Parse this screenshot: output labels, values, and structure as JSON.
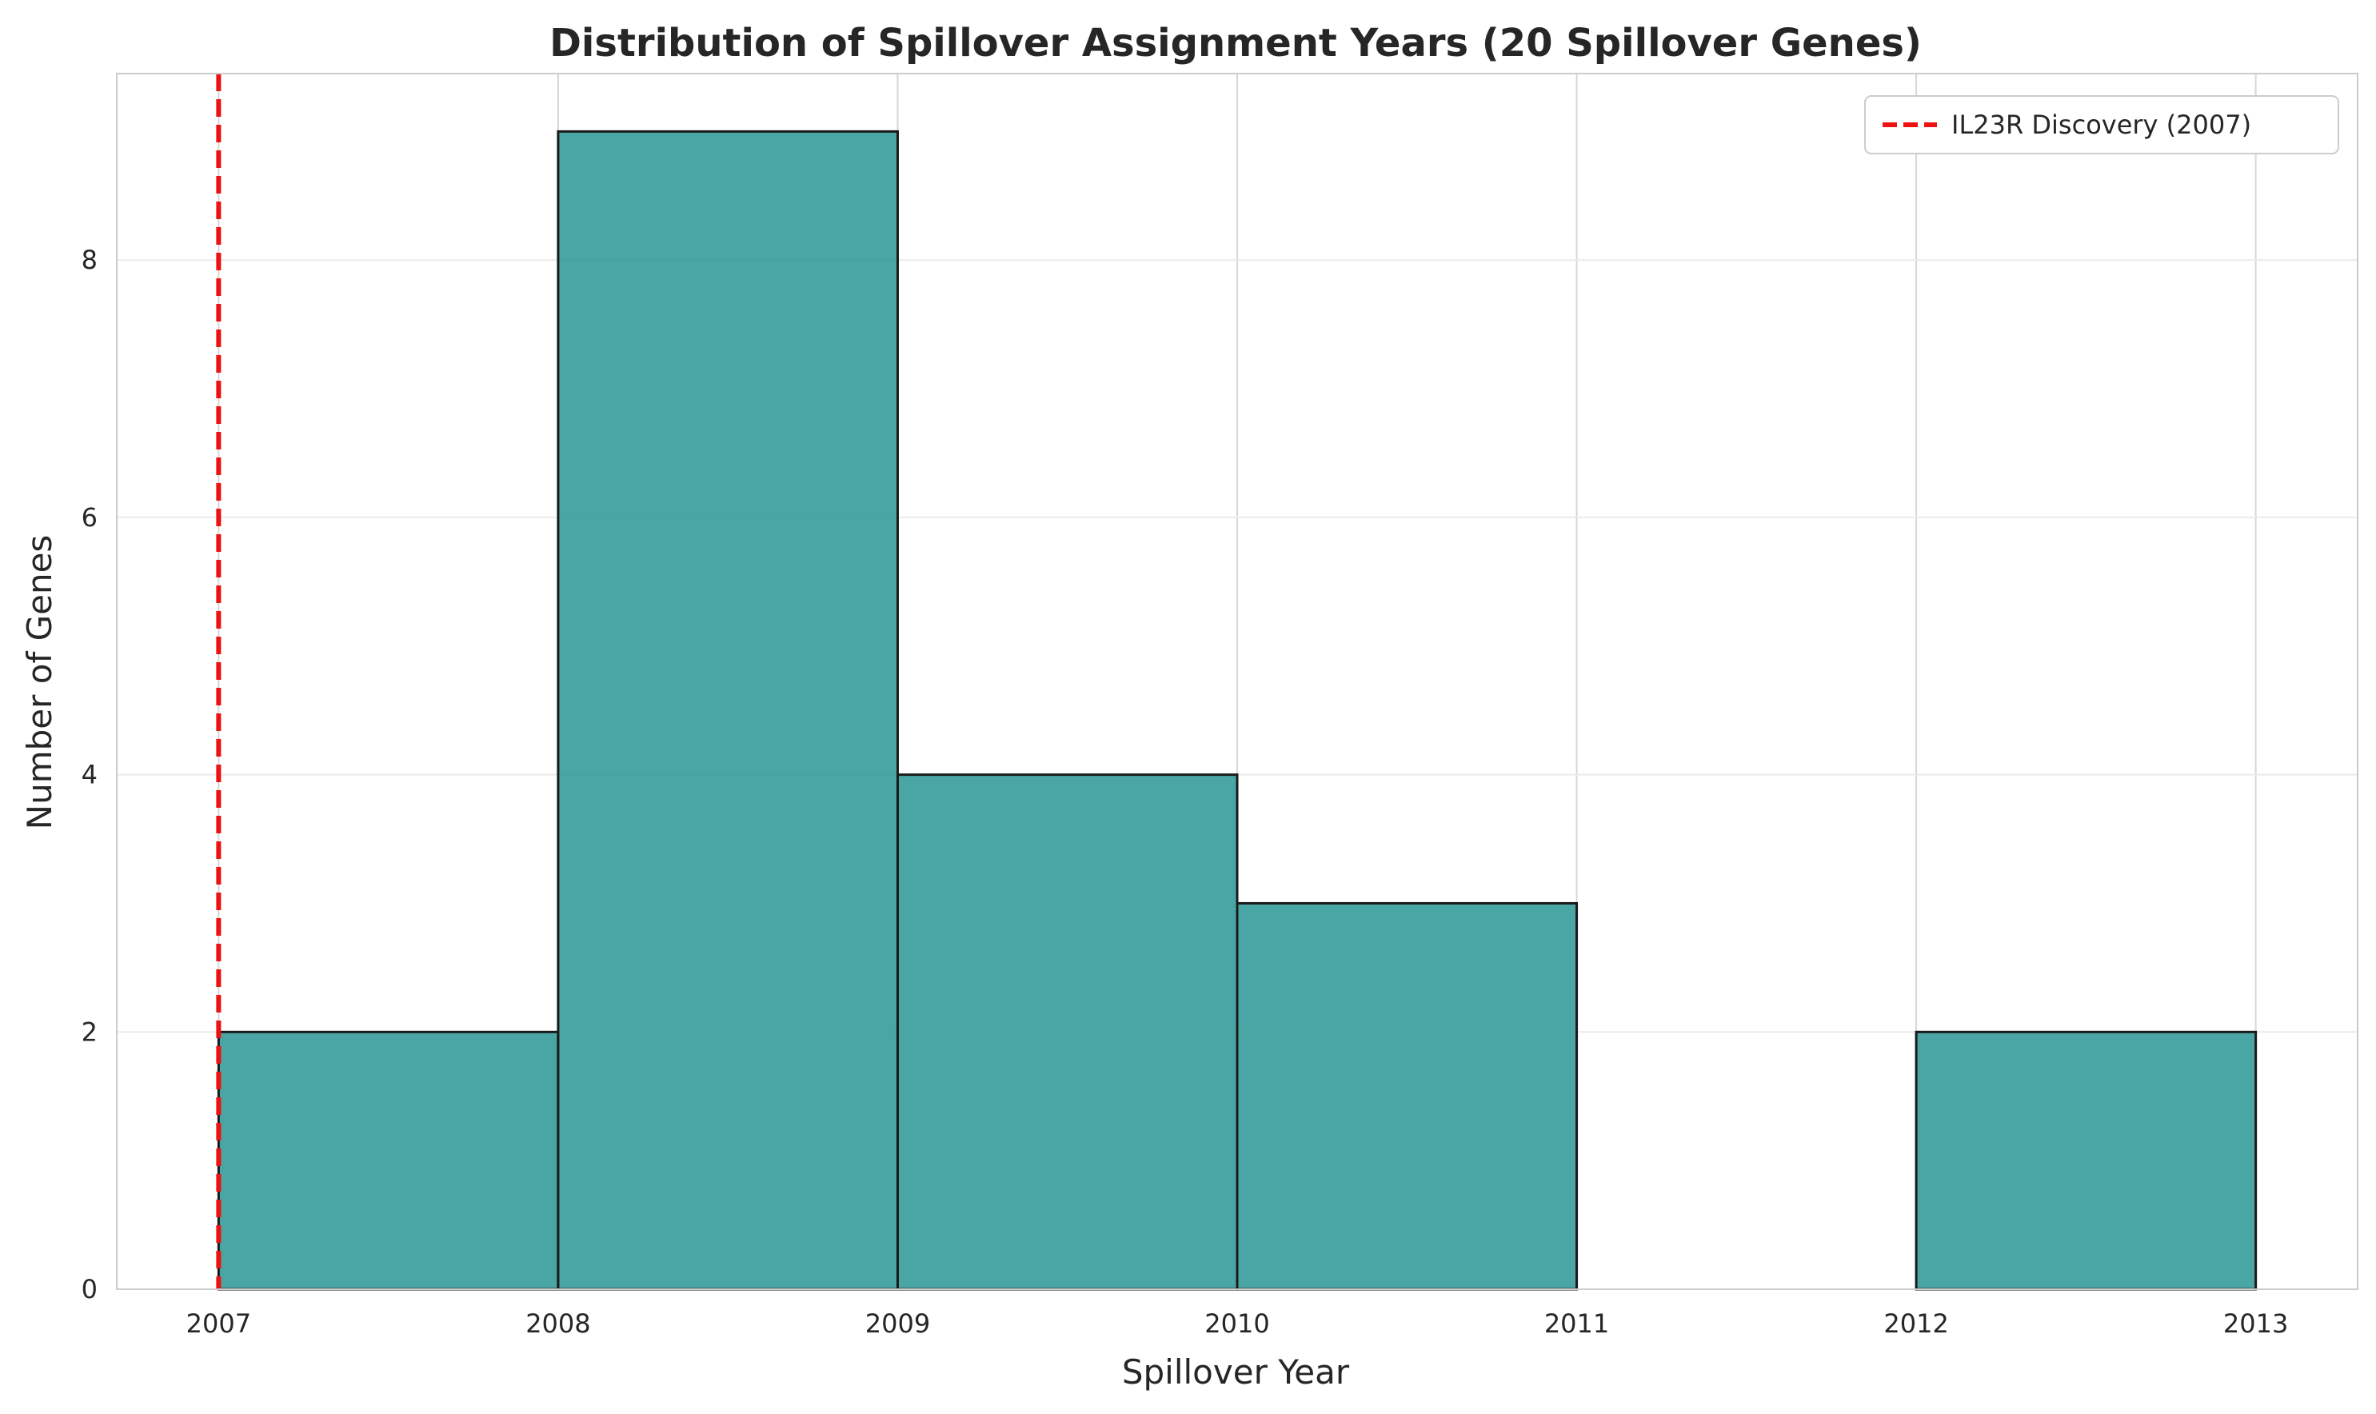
{
  "chart_data": {
    "type": "bar",
    "title": "Distribution of Spillover Assignment Years (20 Spillover Genes)",
    "xlabel": "Spillover Year",
    "ylabel": "Number of Genes",
    "bin_edges": [
      2007,
      2008,
      2009,
      2010,
      2011,
      2012,
      2013
    ],
    "values": [
      2,
      9,
      4,
      3,
      0,
      2
    ],
    "x_ticks": [
      2007,
      2008,
      2009,
      2010,
      2011,
      2012,
      2013
    ],
    "y_ticks": [
      0,
      2,
      4,
      6,
      8
    ],
    "xlim": [
      2006.7,
      2013.3
    ],
    "ylim": [
      0,
      9.45
    ],
    "bar_color": "#2a9694",
    "edge_color": "#1a1a1a",
    "grid": true,
    "reference_line": {
      "x": 2007,
      "label": "IL23R Discovery (2007)",
      "color": "#ee1111",
      "style": "dashed"
    },
    "legend_position": "top-right"
  }
}
